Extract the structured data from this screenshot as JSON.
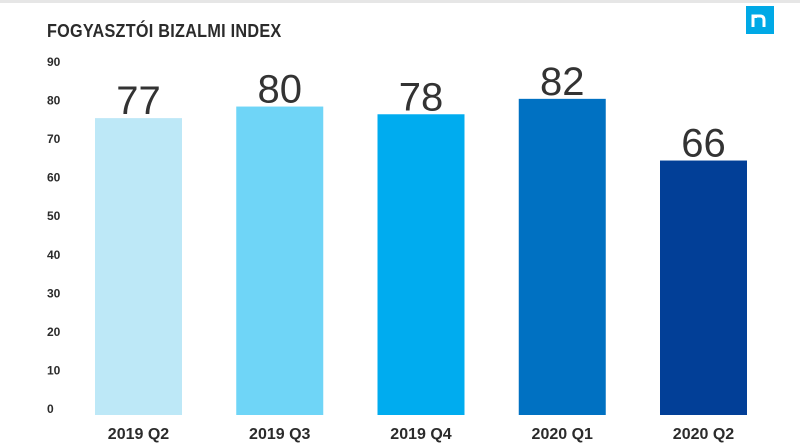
{
  "header": {
    "title": "FOGYASZTÓI BIZALMI INDEX",
    "logo_icon": "nielsen-logo-icon"
  },
  "chart_data": {
    "type": "bar",
    "title": "FOGYASZTÓI BIZALMI INDEX",
    "xlabel": "",
    "ylabel": "",
    "categories": [
      "2019 Q2",
      "2019 Q3",
      "2019 Q4",
      "2020 Q1",
      "2020 Q2"
    ],
    "values": [
      77,
      80,
      78,
      82,
      66
    ],
    "value_labels": [
      "77",
      "80",
      "78",
      "82",
      "66"
    ],
    "bar_colors": [
      "#bde8f7",
      "#6fd5f7",
      "#00acef",
      "#0071c2",
      "#023f97"
    ],
    "ylim": [
      0,
      90
    ],
    "yticks": [
      0,
      10,
      20,
      30,
      40,
      50,
      60,
      70,
      80,
      90
    ],
    "grid": false,
    "legend": "none"
  }
}
